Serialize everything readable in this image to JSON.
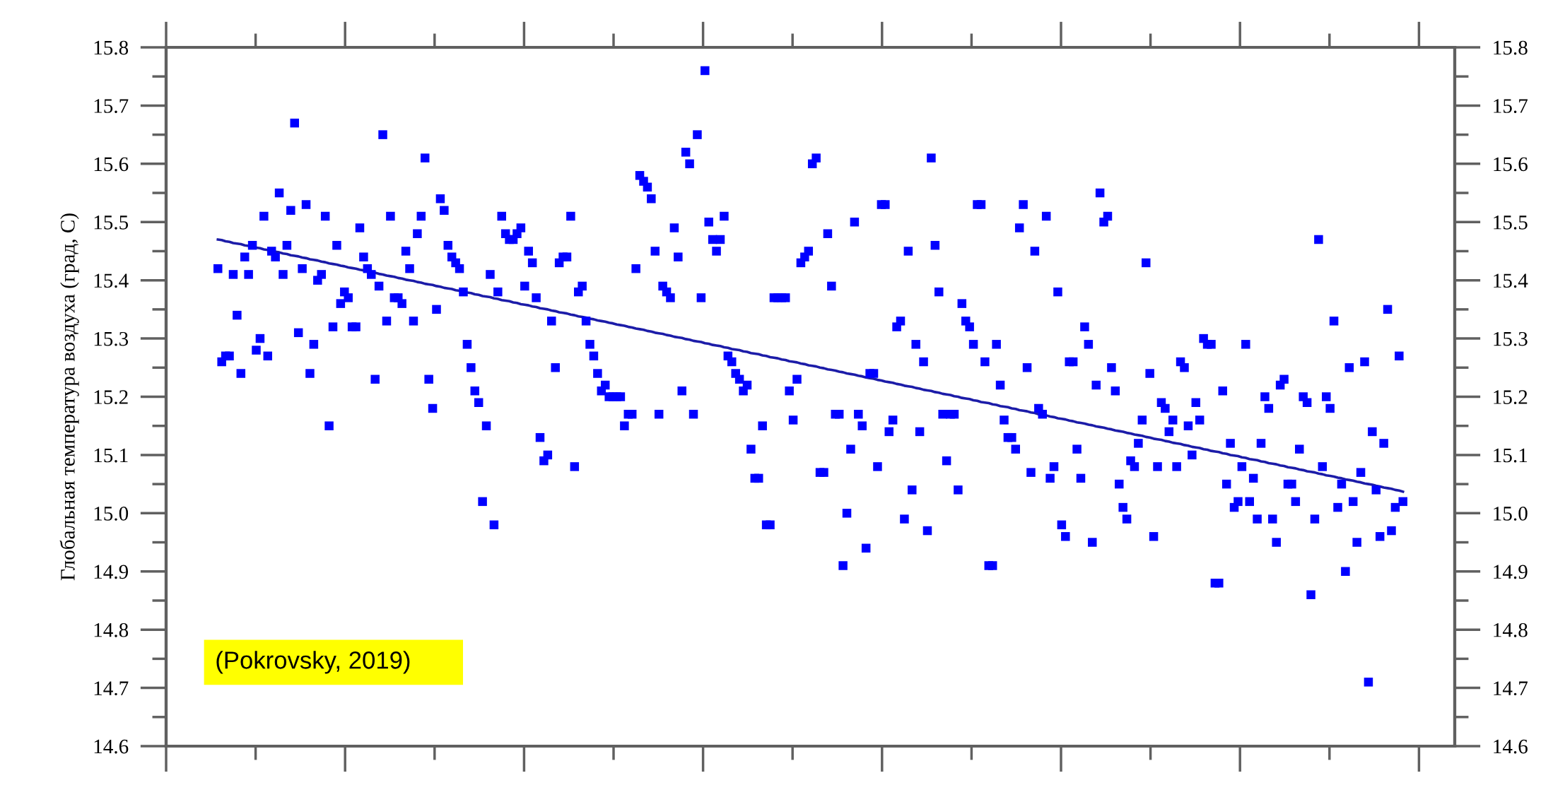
{
  "chart_data": {
    "type": "scatter",
    "ylabel": "Глобальная температура воздуха (град, С)",
    "categories": [
      null,
      null,
      null,
      null,
      null,
      null,
      null,
      null,
      null,
      null,
      null,
      null,
      null,
      null,
      null,
      null,
      null,
      null,
      null,
      null,
      null,
      null,
      null,
      null,
      null,
      null,
      null,
      null,
      null,
      null,
      null,
      null,
      null,
      null,
      null,
      null,
      null,
      null,
      null,
      null,
      null,
      null,
      null,
      null,
      null,
      null,
      null,
      null,
      null,
      null,
      null,
      null,
      null,
      null,
      null,
      null,
      null,
      null,
      null,
      null,
      null,
      null,
      null,
      null,
      null,
      null,
      null,
      null,
      null,
      null,
      null,
      null,
      null,
      null,
      null,
      null,
      null,
      null,
      null,
      null,
      null,
      null,
      null,
      null,
      null,
      null,
      null,
      null,
      null,
      null,
      null,
      null,
      null,
      null,
      null,
      null,
      null,
      null,
      null,
      null,
      null,
      null,
      null,
      null,
      null,
      null,
      null,
      null,
      null,
      null,
      null,
      null,
      null,
      null,
      null,
      null,
      null,
      null,
      null,
      null,
      null,
      null,
      null,
      null,
      null,
      null,
      null,
      null,
      null,
      null,
      null,
      null,
      null,
      null,
      null,
      null,
      null,
      null,
      null,
      null,
      null,
      null,
      null,
      null,
      null,
      null,
      null,
      null,
      null,
      null,
      null,
      null,
      null,
      null,
      null,
      null,
      null,
      null,
      null,
      null,
      null,
      null,
      null,
      null,
      null,
      null,
      null,
      null,
      null,
      null,
      null,
      null,
      null,
      null,
      null,
      null,
      null,
      null,
      null,
      null,
      null,
      null,
      null,
      null,
      null,
      null,
      null,
      null,
      null,
      null,
      null,
      null,
      null,
      null,
      null,
      null,
      null,
      null,
      null,
      null,
      null,
      null,
      null,
      null,
      null,
      null,
      null,
      null,
      null,
      null,
      null,
      null,
      null,
      null,
      null,
      null,
      null,
      null,
      null,
      null,
      null,
      null,
      null,
      null,
      null,
      null,
      null,
      null,
      null,
      null,
      null,
      null,
      null,
      null,
      null,
      null,
      null,
      null,
      null,
      null,
      null,
      null,
      null,
      null,
      null,
      null,
      null,
      null,
      null,
      null,
      null,
      null,
      null,
      null,
      null,
      null,
      null,
      null,
      null,
      null,
      null,
      null,
      null,
      null,
      null,
      null,
      null,
      null,
      null,
      null,
      null,
      null,
      null,
      null,
      null,
      null,
      null,
      null,
      null,
      null,
      null,
      null,
      null,
      null,
      null,
      null,
      null,
      null,
      null,
      null,
      null,
      null,
      null,
      null,
      null,
      null,
      null,
      null,
      null,
      null,
      null,
      null,
      null,
      null,
      null,
      null,
      null,
      null,
      null,
      null,
      null,
      null,
      null,
      null,
      null,
      null,
      null,
      null,
      null,
      null,
      null,
      null,
      null,
      null,
      null,
      null,
      null,
      null,
      null,
      null,
      null,
      null,
      null,
      null,
      null,
      null
    ],
    "series": [
      {
        "color": "#0000ff",
        "marker": "square",
        "values": [
          null,
          null,
          null,
          null,
          null,
          null,
          null,
          null,
          null,
          null,
          null,
          null,
          null,
          15.42,
          15.26,
          15.27,
          15.27,
          15.41,
          15.34,
          15.24,
          15.44,
          15.41,
          15.46,
          15.28,
          15.3,
          15.51,
          15.27,
          15.45,
          15.44,
          15.55,
          15.41,
          15.46,
          15.52,
          15.67,
          15.31,
          15.42,
          15.53,
          15.24,
          15.29,
          15.4,
          15.41,
          15.51,
          15.15,
          15.32,
          15.46,
          15.36,
          15.38,
          15.37,
          15.32,
          15.32,
          15.49,
          15.44,
          15.42,
          15.41,
          15.23,
          15.39,
          15.65,
          15.33,
          15.51,
          15.37,
          15.37,
          15.36,
          15.45,
          15.42,
          15.33,
          15.48,
          15.51,
          15.61,
          15.23,
          15.18,
          15.35,
          15.54,
          15.52,
          15.46,
          15.44,
          15.43,
          15.42,
          15.38,
          15.29,
          15.25,
          15.21,
          15.19,
          15.02,
          15.15,
          15.41,
          14.98,
          15.38,
          15.51,
          15.48,
          15.47,
          15.47,
          15.48,
          15.49,
          15.39,
          15.45,
          15.43,
          15.37,
          15.13,
          15.09,
          15.1,
          15.33,
          15.25,
          15.43,
          15.44,
          15.44,
          15.51,
          15.08,
          15.38,
          15.39,
          15.33,
          15.29,
          15.27,
          15.24,
          15.21,
          15.22,
          15.2,
          15.2,
          15.2,
          15.2,
          15.15,
          15.17,
          15.17,
          15.42,
          15.58,
          15.57,
          15.56,
          15.54,
          15.45,
          15.17,
          15.39,
          15.38,
          15.37,
          15.49,
          15.44,
          15.21,
          15.62,
          15.6,
          15.17,
          15.65,
          15.37,
          15.76,
          15.5,
          15.47,
          15.45,
          15.47,
          15.51,
          15.27,
          15.26,
          15.24,
          15.23,
          15.21,
          15.22,
          15.11,
          15.06,
          15.06,
          15.15,
          14.98,
          14.98,
          15.37,
          15.37,
          15.37,
          15.37,
          15.21,
          15.16,
          15.23,
          15.43,
          15.44,
          15.45,
          15.6,
          15.61,
          15.07,
          15.07,
          15.48,
          15.39,
          15.17,
          15.17,
          14.91,
          15.0,
          15.11,
          15.5,
          15.17,
          15.15,
          14.94,
          15.24,
          15.24,
          15.08,
          15.53,
          15.53,
          15.14,
          15.16,
          15.32,
          15.33,
          14.99,
          15.45,
          15.04,
          15.29,
          15.14,
          15.26,
          14.97,
          15.61,
          15.46,
          15.38,
          15.17,
          15.09,
          15.17,
          15.17,
          15.04,
          15.36,
          15.33,
          15.32,
          15.29,
          15.53,
          15.53,
          15.26,
          14.91,
          14.91,
          15.29,
          15.22,
          15.16,
          15.13,
          15.13,
          15.11,
          15.49,
          15.53,
          15.25,
          15.07,
          15.45,
          15.18,
          15.17,
          15.51,
          15.06,
          15.08,
          15.38,
          14.98,
          14.96,
          15.26,
          15.26,
          15.11,
          15.06,
          15.32,
          15.29,
          14.95,
          15.22,
          15.55,
          15.5,
          15.51,
          15.25,
          15.21,
          15.05,
          15.01,
          14.99,
          15.09,
          15.08,
          15.12,
          15.16,
          15.43,
          15.24,
          14.96,
          15.08,
          15.19,
          15.18,
          15.14,
          15.16,
          15.08,
          15.26,
          15.25,
          15.15,
          15.1,
          15.19,
          15.16,
          15.3,
          15.29,
          15.29,
          14.88,
          14.88,
          15.21,
          15.05,
          15.12,
          15.01,
          15.02,
          15.08,
          15.29,
          15.02,
          15.06,
          14.99,
          15.12,
          15.2,
          15.18,
          14.99,
          14.95,
          15.22,
          15.23,
          15.05,
          15.05,
          15.02,
          15.11,
          15.2,
          15.19,
          14.86,
          14.99,
          15.47,
          15.08,
          15.2,
          15.18,
          15.33,
          15.01,
          15.05,
          14.9,
          15.25,
          15.02,
          14.95,
          15.07,
          15.26,
          14.71,
          15.14,
          15.04,
          14.96,
          15.12,
          15.35,
          14.97,
          15.01,
          15.27,
          15.02,
          null,
          null,
          null,
          null,
          null,
          null,
          null,
          null,
          null,
          null,
          null,
          null,
          null
        ]
      },
      {
        "type": "line",
        "color": "#1c1ca8",
        "marker": "none",
        "values": [
          null,
          null,
          null,
          null,
          null,
          null,
          null,
          null,
          null,
          null,
          null,
          null,
          null,
          15.47,
          15.469,
          15.467,
          15.466,
          15.464,
          15.463,
          15.462,
          15.46,
          15.459,
          15.457,
          15.456,
          15.455,
          15.453,
          15.452,
          15.45,
          15.449,
          15.448,
          15.446,
          15.445,
          15.443,
          15.442,
          15.441,
          15.439,
          15.438,
          15.436,
          15.435,
          15.434,
          15.432,
          15.431,
          15.429,
          15.428,
          15.427,
          15.425,
          15.424,
          15.422,
          15.421,
          15.42,
          15.418,
          15.417,
          15.415,
          15.414,
          15.413,
          15.411,
          15.41,
          15.408,
          15.407,
          15.406,
          15.404,
          15.403,
          15.401,
          15.4,
          15.399,
          15.397,
          15.396,
          15.394,
          15.393,
          15.392,
          15.39,
          15.389,
          15.387,
          15.386,
          15.385,
          15.383,
          15.382,
          15.38,
          15.379,
          15.378,
          15.376,
          15.375,
          15.373,
          15.372,
          15.371,
          15.369,
          15.368,
          15.366,
          15.365,
          15.364,
          15.362,
          15.361,
          15.359,
          15.358,
          15.357,
          15.355,
          15.354,
          15.352,
          15.351,
          15.35,
          15.348,
          15.347,
          15.345,
          15.344,
          15.343,
          15.341,
          15.34,
          15.338,
          15.337,
          15.336,
          15.334,
          15.333,
          15.331,
          15.33,
          15.329,
          15.327,
          15.326,
          15.324,
          15.323,
          15.322,
          15.32,
          15.319,
          15.317,
          15.316,
          15.315,
          15.313,
          15.312,
          15.31,
          15.309,
          15.308,
          15.306,
          15.305,
          15.303,
          15.302,
          15.301,
          15.299,
          15.298,
          15.296,
          15.295,
          15.294,
          15.292,
          15.291,
          15.289,
          15.288,
          15.287,
          15.285,
          15.284,
          15.282,
          15.281,
          15.28,
          15.278,
          15.277,
          15.275,
          15.274,
          15.273,
          15.271,
          15.27,
          15.268,
          15.267,
          15.266,
          15.264,
          15.263,
          15.261,
          15.26,
          15.259,
          15.257,
          15.256,
          15.254,
          15.253,
          15.252,
          15.25,
          15.249,
          15.247,
          15.246,
          15.245,
          15.243,
          15.242,
          15.24,
          15.239,
          15.238,
          15.236,
          15.235,
          15.233,
          15.232,
          15.231,
          15.229,
          15.228,
          15.226,
          15.225,
          15.224,
          15.222,
          15.221,
          15.219,
          15.218,
          15.217,
          15.215,
          15.214,
          15.212,
          15.211,
          15.21,
          15.208,
          15.207,
          15.205,
          15.204,
          15.203,
          15.201,
          15.2,
          15.198,
          15.197,
          15.196,
          15.194,
          15.193,
          15.191,
          15.19,
          15.189,
          15.187,
          15.186,
          15.184,
          15.183,
          15.182,
          15.18,
          15.179,
          15.177,
          15.176,
          15.175,
          15.173,
          15.172,
          15.17,
          15.169,
          15.168,
          15.166,
          15.165,
          15.163,
          15.162,
          15.161,
          15.159,
          15.158,
          15.156,
          15.155,
          15.154,
          15.152,
          15.151,
          15.149,
          15.148,
          15.147,
          15.145,
          15.144,
          15.142,
          15.141,
          15.14,
          15.138,
          15.137,
          15.135,
          15.134,
          15.133,
          15.131,
          15.13,
          15.128,
          15.127,
          15.126,
          15.124,
          15.123,
          15.121,
          15.12,
          15.119,
          15.117,
          15.116,
          15.114,
          15.113,
          15.112,
          15.11,
          15.109,
          15.107,
          15.106,
          15.105,
          15.103,
          15.102,
          15.1,
          15.099,
          15.098,
          15.096,
          15.095,
          15.093,
          15.092,
          15.091,
          15.089,
          15.088,
          15.086,
          15.085,
          15.084,
          15.082,
          15.081,
          15.079,
          15.078,
          15.077,
          15.075,
          15.074,
          15.072,
          15.071,
          15.07,
          15.068,
          15.067,
          15.065,
          15.064,
          15.063,
          15.061,
          15.06,
          15.058,
          15.057,
          15.056,
          15.054,
          15.053,
          15.051,
          15.05,
          15.049,
          15.047,
          15.046,
          15.044,
          15.043,
          15.042,
          15.04,
          15.039,
          15.037,
          null,
          null,
          null,
          null,
          null,
          null,
          null,
          null,
          null,
          null,
          null,
          null,
          null
        ]
      }
    ],
    "ylim": [
      14.6,
      15.8
    ],
    "yticks": [
      14.6,
      14.7,
      14.8,
      14.9,
      {
        "value": 15.0,
        "label": "15.0"
      },
      15.1,
      15.2,
      15.3,
      15.4,
      15.5,
      15.6,
      15.7,
      15.8
    ],
    "y2lim": [
      14.6,
      15.8
    ],
    "y2ticks": [
      14.6,
      14.7,
      14.8,
      14.9,
      {
        "value": 15.0,
        "label": "15.0"
      },
      15.1,
      15.2,
      15.3,
      15.4,
      15.5,
      15.6,
      15.7,
      15.8
    ],
    "annotations": [
      "(Pokrovsky, 2019)"
    ]
  }
}
